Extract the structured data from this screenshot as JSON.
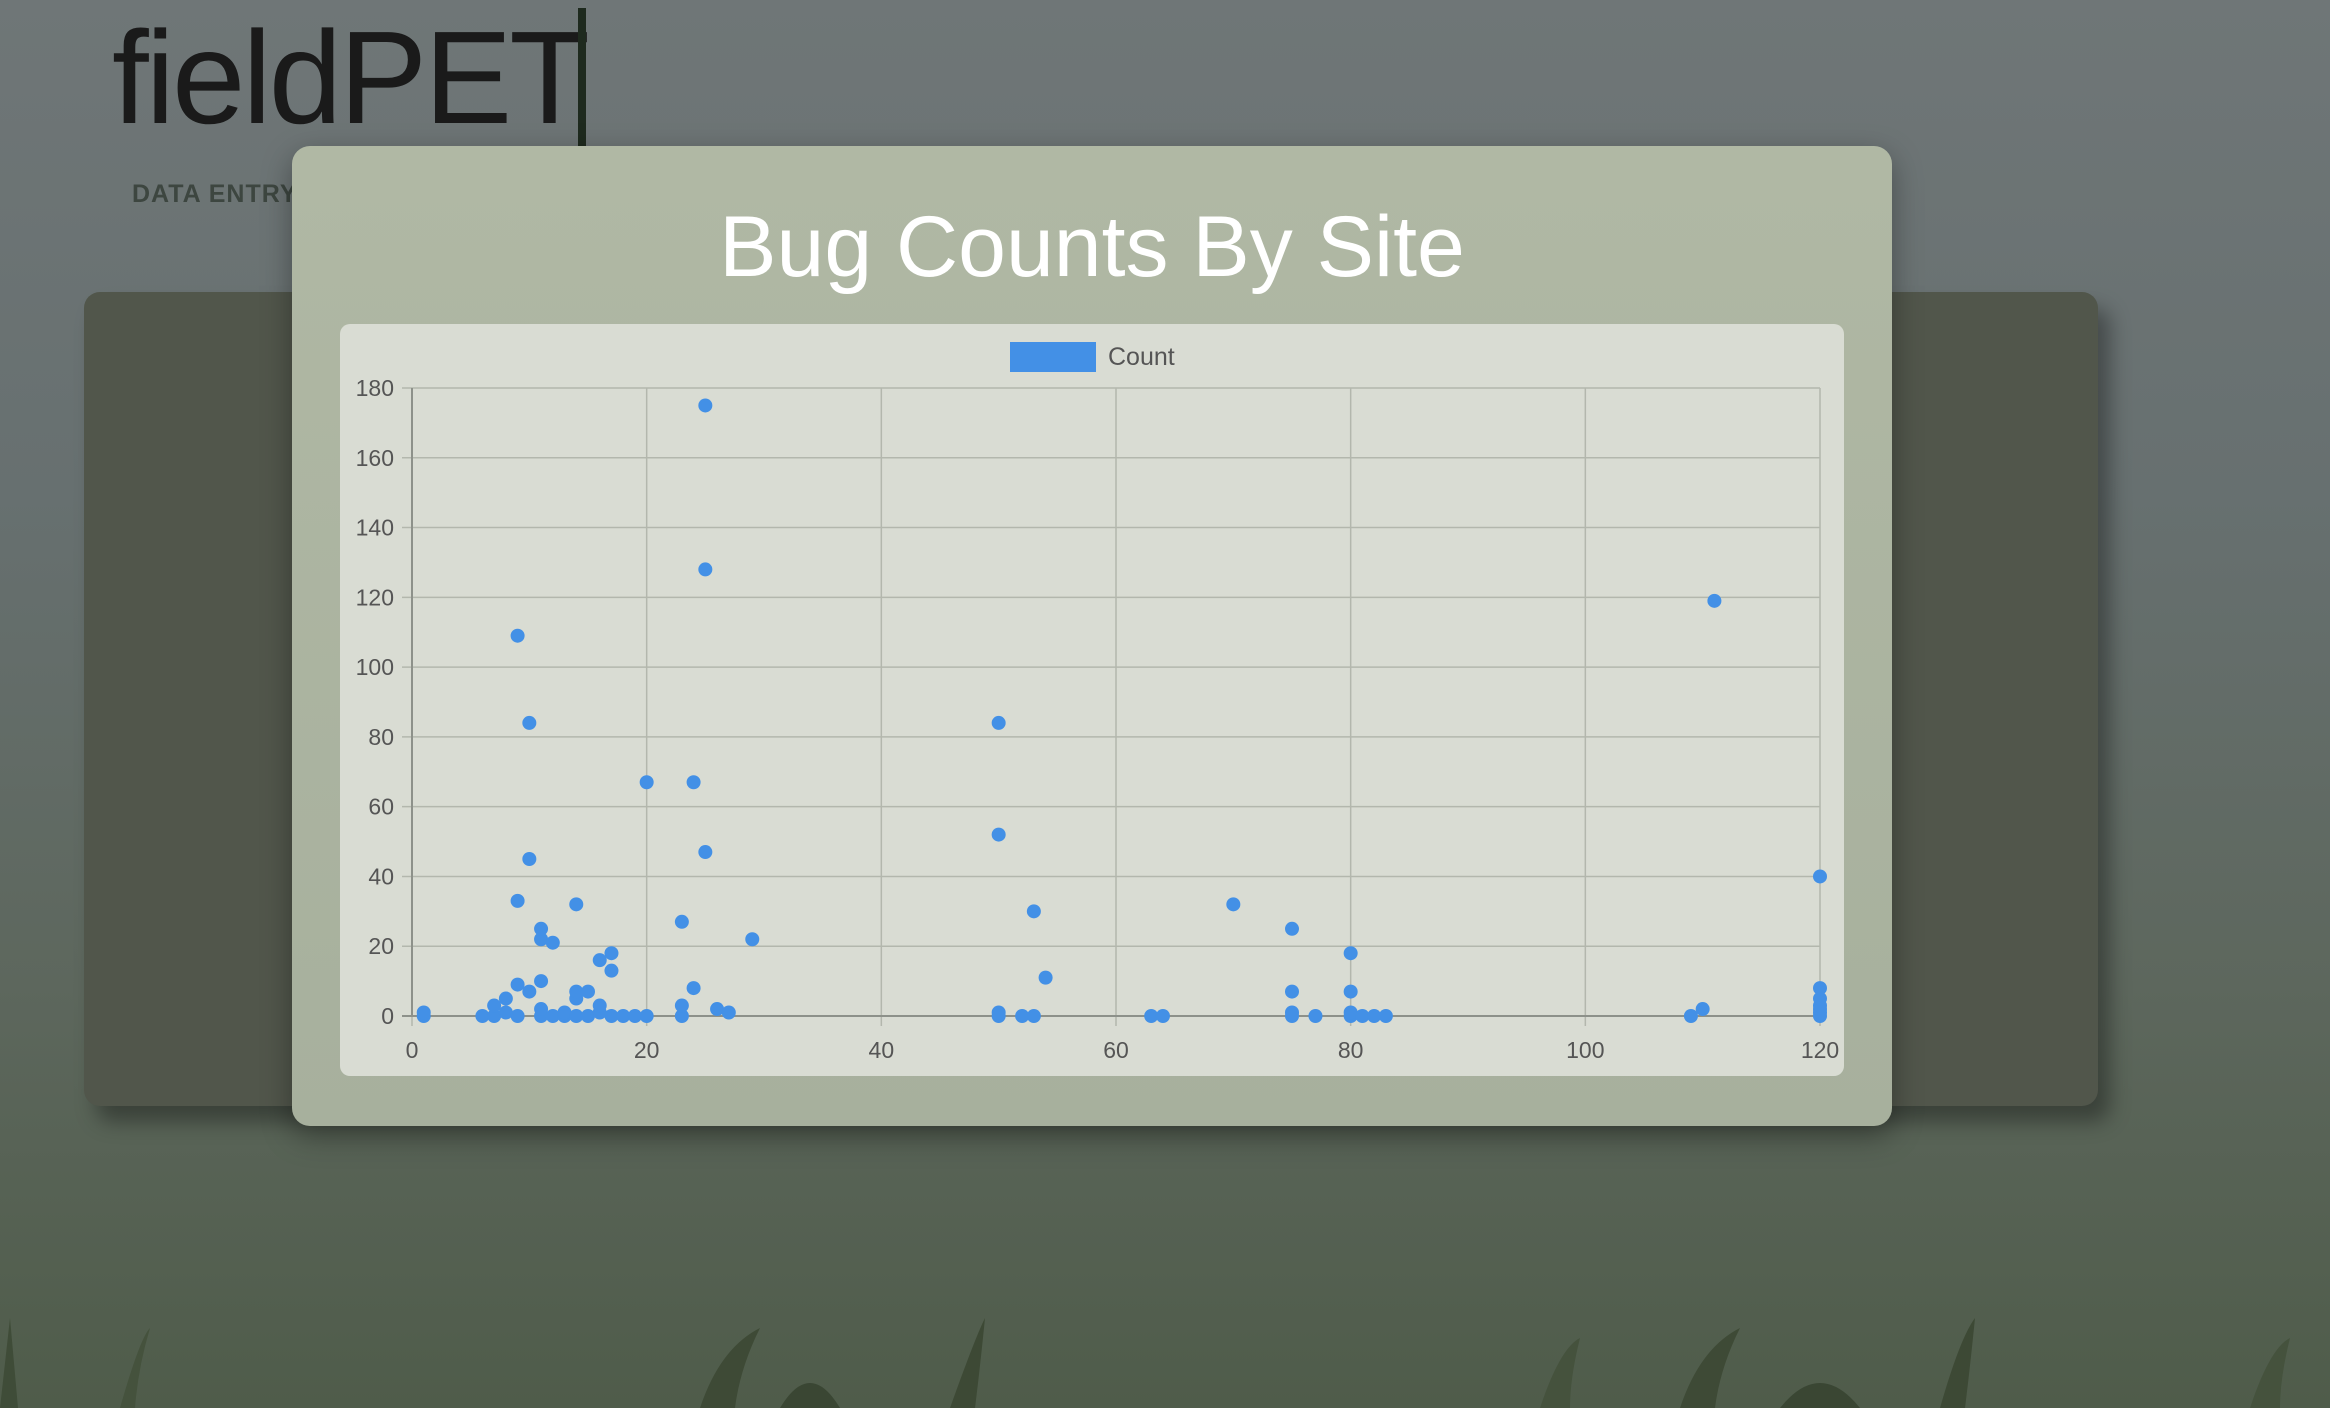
{
  "app": {
    "brand": "fieldPET",
    "nav_data_entry": "DATA ENTRY"
  },
  "modal": {
    "title": "Bug Counts By Site"
  },
  "colors": {
    "series": "#4390e6",
    "modal_bg": "#abb4a0",
    "chart_bg": "#d9dcd3"
  },
  "chart_data": {
    "type": "scatter",
    "title": "Bug Counts By Site",
    "xlabel": "",
    "ylabel": "",
    "xlim": [
      0,
      120
    ],
    "ylim": [
      0,
      180
    ],
    "xticks": [
      0,
      20,
      40,
      60,
      80,
      100,
      120
    ],
    "yticks": [
      0,
      20,
      40,
      60,
      80,
      100,
      120,
      140,
      160,
      180
    ],
    "grid": true,
    "legend_position": "top-center",
    "series": [
      {
        "name": "Count",
        "points": [
          [
            1,
            0
          ],
          [
            1,
            1
          ],
          [
            6,
            0
          ],
          [
            7,
            0
          ],
          [
            7,
            3
          ],
          [
            8,
            1
          ],
          [
            8,
            5
          ],
          [
            9,
            0
          ],
          [
            9,
            9
          ],
          [
            9,
            33
          ],
          [
            9,
            109
          ],
          [
            10,
            7
          ],
          [
            10,
            45
          ],
          [
            10,
            84
          ],
          [
            11,
            0
          ],
          [
            11,
            2
          ],
          [
            11,
            10
          ],
          [
            11,
            22
          ],
          [
            11,
            25
          ],
          [
            12,
            0
          ],
          [
            12,
            21
          ],
          [
            13,
            0
          ],
          [
            13,
            1
          ],
          [
            14,
            0
          ],
          [
            14,
            5
          ],
          [
            14,
            7
          ],
          [
            14,
            32
          ],
          [
            15,
            0
          ],
          [
            15,
            7
          ],
          [
            16,
            1
          ],
          [
            16,
            3
          ],
          [
            16,
            16
          ],
          [
            17,
            0
          ],
          [
            17,
            13
          ],
          [
            17,
            18
          ],
          [
            18,
            0
          ],
          [
            19,
            0
          ],
          [
            20,
            0
          ],
          [
            20,
            67
          ],
          [
            23,
            0
          ],
          [
            23,
            3
          ],
          [
            23,
            27
          ],
          [
            24,
            8
          ],
          [
            24,
            67
          ],
          [
            25,
            47
          ],
          [
            25,
            128
          ],
          [
            25,
            175
          ],
          [
            26,
            2
          ],
          [
            27,
            1
          ],
          [
            29,
            22
          ],
          [
            50,
            0
          ],
          [
            50,
            1
          ],
          [
            50,
            52
          ],
          [
            50,
            84
          ],
          [
            52,
            0
          ],
          [
            53,
            0
          ],
          [
            53,
            30
          ],
          [
            54,
            11
          ],
          [
            63,
            0
          ],
          [
            64,
            0
          ],
          [
            70,
            32
          ],
          [
            75,
            0
          ],
          [
            75,
            1
          ],
          [
            75,
            7
          ],
          [
            75,
            25
          ],
          [
            77,
            0
          ],
          [
            80,
            0
          ],
          [
            80,
            1
          ],
          [
            80,
            7
          ],
          [
            80,
            18
          ],
          [
            81,
            0
          ],
          [
            82,
            0
          ],
          [
            83,
            0
          ],
          [
            109,
            0
          ],
          [
            110,
            2
          ],
          [
            111,
            119
          ],
          [
            120,
            0
          ],
          [
            120,
            1
          ],
          [
            120,
            2
          ],
          [
            120,
            3
          ],
          [
            120,
            5
          ],
          [
            120,
            8
          ],
          [
            120,
            40
          ]
        ]
      }
    ]
  }
}
